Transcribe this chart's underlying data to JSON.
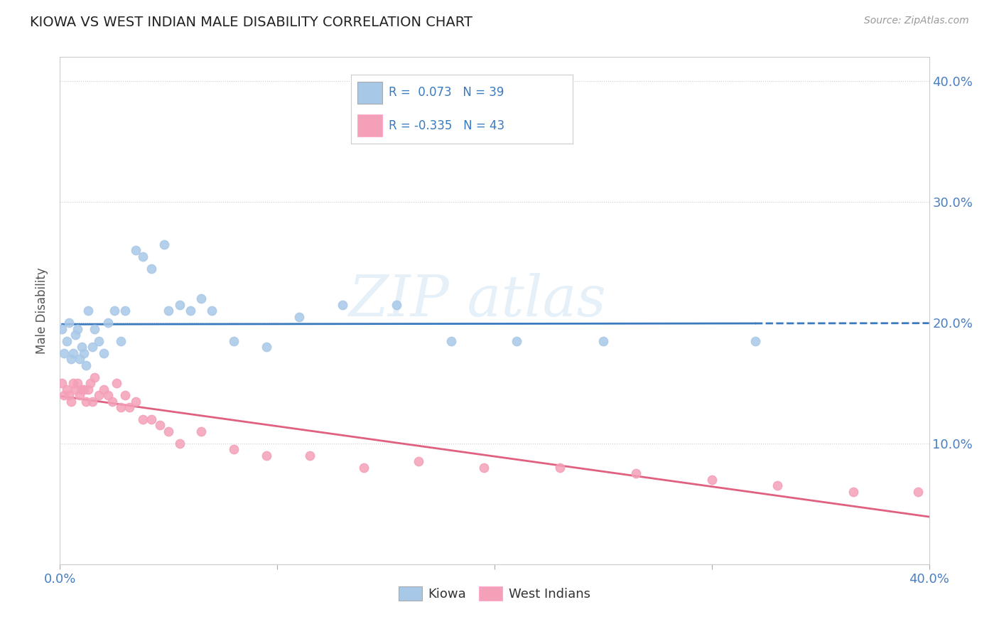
{
  "title": "KIOWA VS WEST INDIAN MALE DISABILITY CORRELATION CHART",
  "source": "Source: ZipAtlas.com",
  "ylabel": "Male Disability",
  "xlim": [
    0.0,
    0.4
  ],
  "ylim": [
    0.0,
    0.42
  ],
  "kiowa_color": "#a8c8e8",
  "west_indian_color": "#f4a0b8",
  "kiowa_line_color": "#3a7abf",
  "west_indian_line_color": "#e06080",
  "kiowa_R": 0.073,
  "kiowa_N": 39,
  "west_indian_R": -0.335,
  "west_indian_N": 43,
  "legend_label1": "Kiowa",
  "legend_label2": "West Indians",
  "kiowa_x": [
    0.001,
    0.002,
    0.003,
    0.004,
    0.005,
    0.006,
    0.007,
    0.008,
    0.009,
    0.01,
    0.011,
    0.012,
    0.013,
    0.015,
    0.016,
    0.018,
    0.02,
    0.022,
    0.025,
    0.028,
    0.03,
    0.035,
    0.038,
    0.042,
    0.048,
    0.05,
    0.055,
    0.06,
    0.065,
    0.07,
    0.08,
    0.095,
    0.11,
    0.13,
    0.155,
    0.18,
    0.21,
    0.25,
    0.32
  ],
  "kiowa_y": [
    0.195,
    0.175,
    0.185,
    0.2,
    0.17,
    0.175,
    0.19,
    0.195,
    0.17,
    0.18,
    0.175,
    0.165,
    0.21,
    0.18,
    0.195,
    0.185,
    0.175,
    0.2,
    0.21,
    0.185,
    0.21,
    0.26,
    0.255,
    0.245,
    0.265,
    0.21,
    0.215,
    0.21,
    0.22,
    0.21,
    0.185,
    0.18,
    0.205,
    0.215,
    0.215,
    0.185,
    0.185,
    0.185,
    0.185
  ],
  "west_indian_x": [
    0.001,
    0.002,
    0.003,
    0.004,
    0.005,
    0.006,
    0.007,
    0.008,
    0.009,
    0.01,
    0.011,
    0.012,
    0.013,
    0.014,
    0.015,
    0.016,
    0.018,
    0.02,
    0.022,
    0.024,
    0.026,
    0.028,
    0.03,
    0.032,
    0.035,
    0.038,
    0.042,
    0.046,
    0.05,
    0.055,
    0.065,
    0.08,
    0.095,
    0.115,
    0.14,
    0.165,
    0.195,
    0.23,
    0.265,
    0.3,
    0.33,
    0.365,
    0.395
  ],
  "west_indian_y": [
    0.15,
    0.14,
    0.145,
    0.14,
    0.135,
    0.15,
    0.145,
    0.15,
    0.14,
    0.145,
    0.145,
    0.135,
    0.145,
    0.15,
    0.135,
    0.155,
    0.14,
    0.145,
    0.14,
    0.135,
    0.15,
    0.13,
    0.14,
    0.13,
    0.135,
    0.12,
    0.12,
    0.115,
    0.11,
    0.1,
    0.11,
    0.095,
    0.09,
    0.09,
    0.08,
    0.085,
    0.08,
    0.08,
    0.075,
    0.07,
    0.065,
    0.06,
    0.06
  ]
}
